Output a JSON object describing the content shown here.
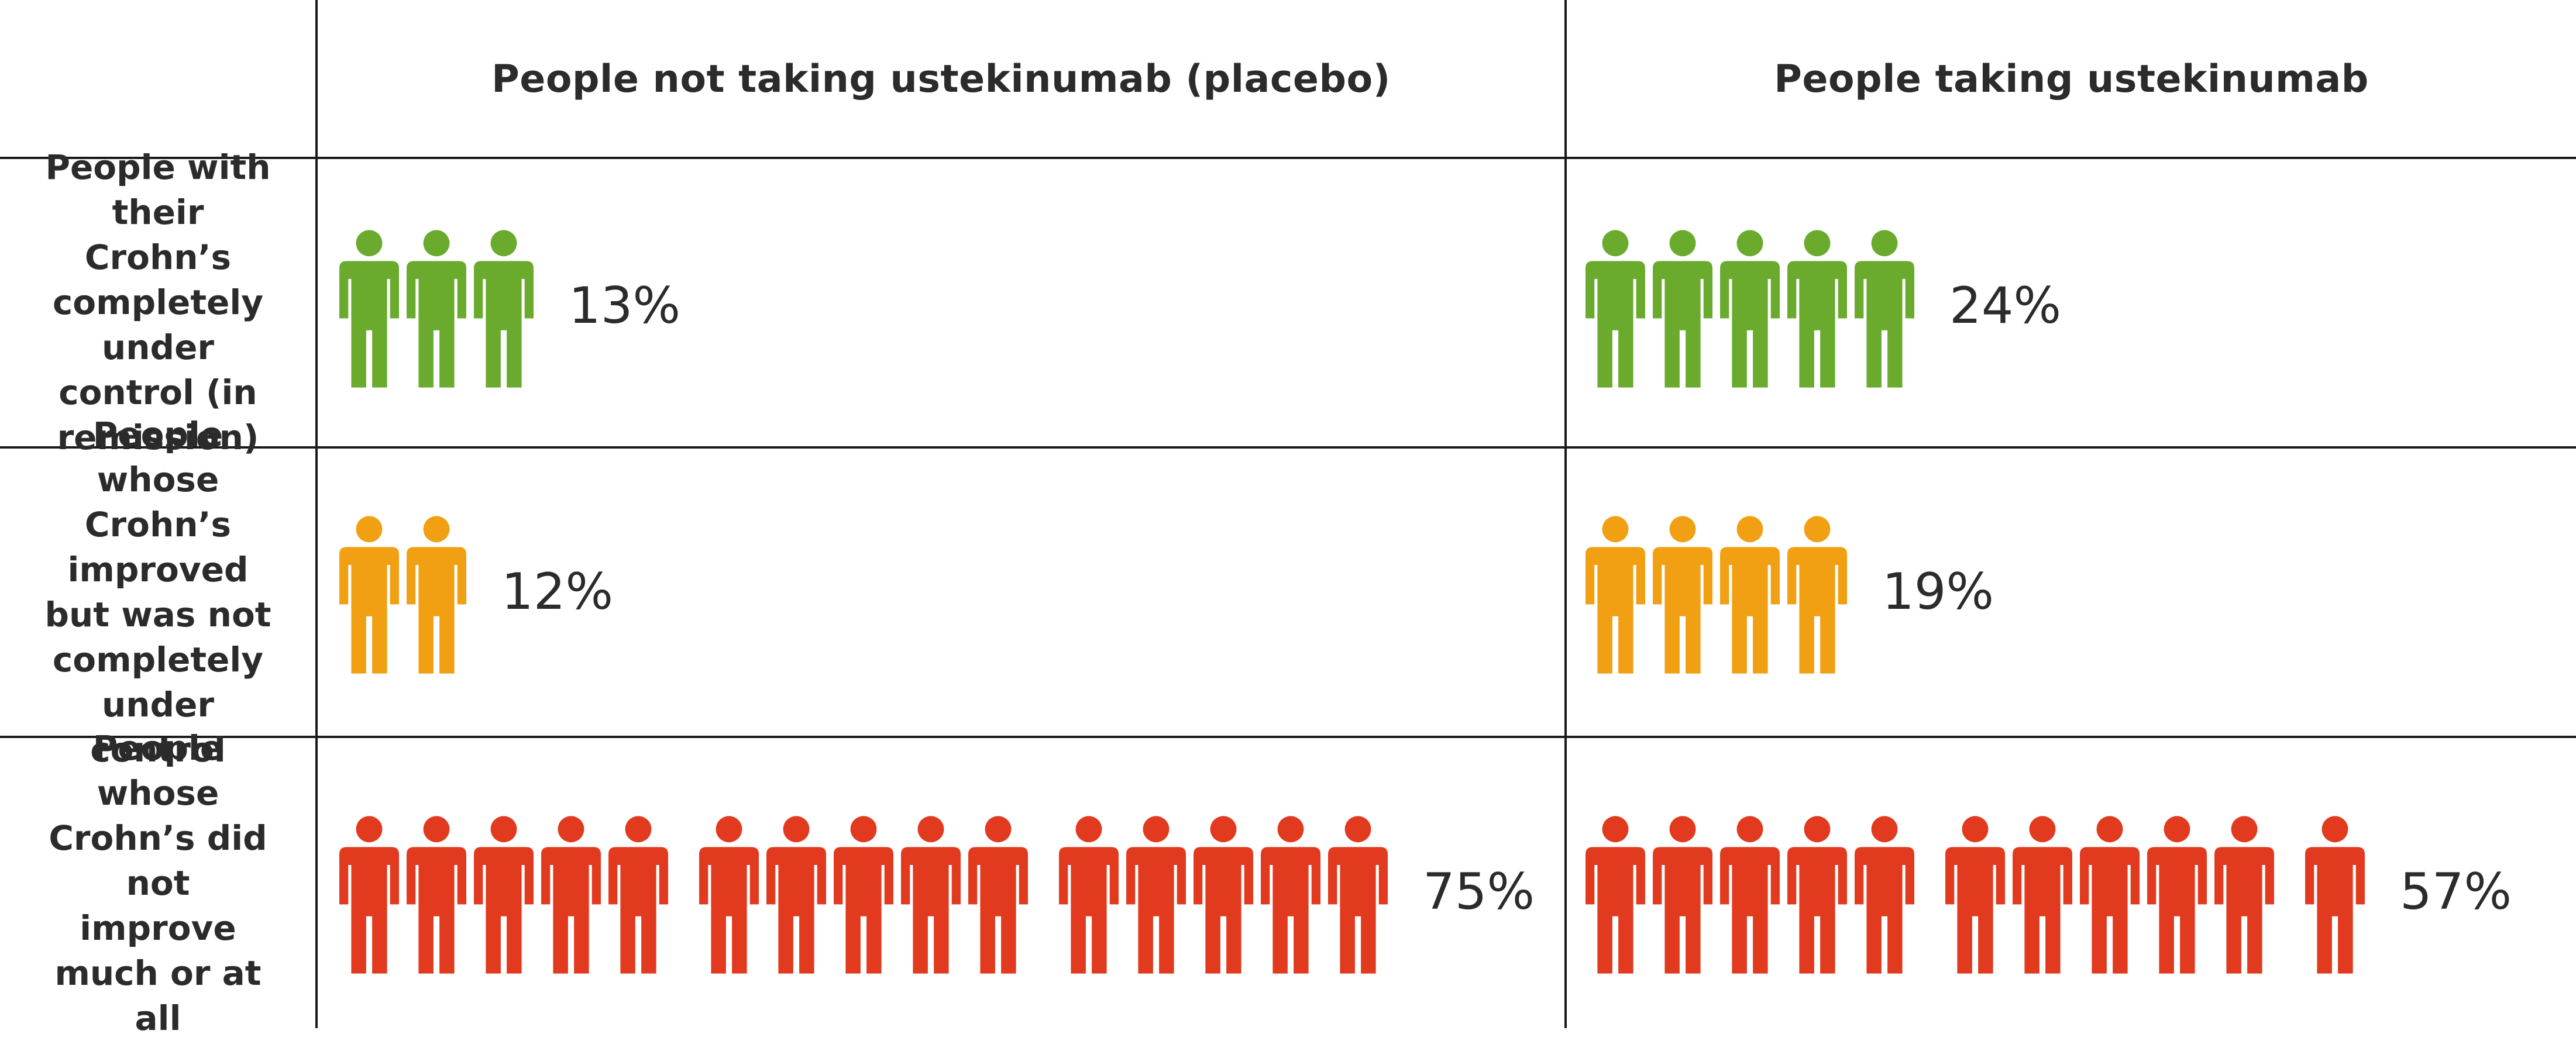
{
  "chart_data": {
    "type": "pictogram-table",
    "title": "",
    "columns": [
      "People not taking ustekinumab (placebo)",
      "People taking ustekinumab"
    ],
    "rows": [
      {
        "label": "People with their Crohn’s completely under control (in remission)",
        "color": "#6aab2e",
        "icon": "person-icon",
        "values": [
          {
            "percent_label": "13%",
            "value": 13,
            "icons": 3
          },
          {
            "percent_label": "24%",
            "value": 24,
            "icons": 5
          }
        ]
      },
      {
        "label": "People whose Crohn’s improved but was not completely under control",
        "color": "#f0a012",
        "icon": "person-icon",
        "values": [
          {
            "percent_label": "12%",
            "value": 12,
            "icons": 2
          },
          {
            "percent_label": "19%",
            "value": 19,
            "icons": 4
          }
        ]
      },
      {
        "label": "People whose Crohn’s did not improve much or at all",
        "color": "#e23a1e",
        "icon": "person-icon",
        "values": [
          {
            "percent_label": "75%",
            "value": 75,
            "icons": 15
          },
          {
            "percent_label": "57%",
            "value": 57,
            "icons": 11
          }
        ]
      }
    ]
  }
}
